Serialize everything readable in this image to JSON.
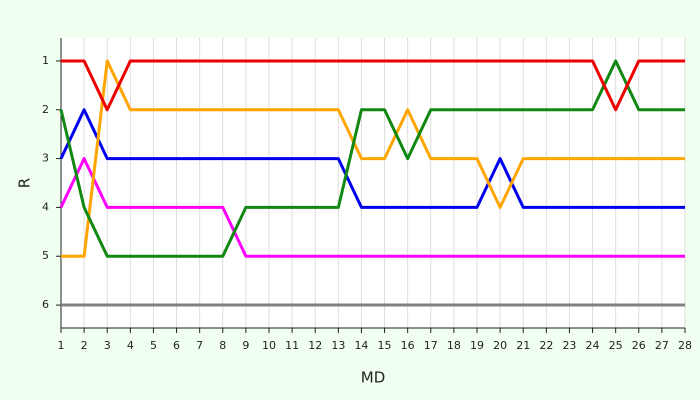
{
  "chart_data": {
    "type": "line",
    "xlabel": "MD",
    "ylabel": "R",
    "x": [
      1,
      2,
      3,
      4,
      5,
      6,
      7,
      8,
      9,
      10,
      11,
      12,
      13,
      14,
      15,
      16,
      17,
      18,
      19,
      20,
      21,
      22,
      23,
      24,
      25,
      26,
      27,
      28
    ],
    "xlim": [
      1,
      28
    ],
    "xticks": [
      1,
      2,
      3,
      4,
      5,
      6,
      7,
      8,
      9,
      10,
      11,
      12,
      13,
      14,
      15,
      16,
      17,
      18,
      19,
      20,
      21,
      22,
      23,
      24,
      25,
      26,
      27,
      28
    ],
    "ylim": [
      6.47,
      0.53
    ],
    "yticks": [
      1,
      2,
      3,
      4,
      5,
      6
    ],
    "grid": true,
    "series": [
      {
        "color": "#808080",
        "values": [
          6,
          6,
          6,
          6,
          6,
          6,
          6,
          6,
          6,
          6,
          6,
          6,
          6,
          6,
          6,
          6,
          6,
          6,
          6,
          6,
          6,
          6,
          6,
          6,
          6,
          6,
          6,
          6
        ]
      },
      {
        "color": "#ff00ff",
        "values": [
          4,
          3,
          4,
          4,
          4,
          4,
          4,
          4,
          5,
          5,
          5,
          5,
          5,
          5,
          5,
          5,
          5,
          5,
          5,
          5,
          5,
          5,
          5,
          5,
          5,
          5,
          5,
          5
        ]
      },
      {
        "color": "#0000ee",
        "values": [
          3,
          2,
          3,
          3,
          3,
          3,
          3,
          3,
          3,
          3,
          3,
          3,
          3,
          4,
          4,
          4,
          4,
          4,
          4,
          3,
          4,
          4,
          4,
          4,
          4,
          4,
          4,
          4
        ]
      },
      {
        "color": "#ffa500",
        "values": [
          5,
          5,
          1,
          2,
          2,
          2,
          2,
          2,
          2,
          2,
          2,
          2,
          2,
          3,
          3,
          2,
          3,
          3,
          3,
          4,
          3,
          3,
          3,
          3,
          3,
          3,
          3,
          3
        ]
      },
      {
        "color": "#118811",
        "values": [
          2,
          4,
          5,
          5,
          5,
          5,
          5,
          5,
          4,
          4,
          4,
          4,
          4,
          2,
          2,
          3,
          2,
          2,
          2,
          2,
          2,
          2,
          2,
          2,
          1,
          2,
          2,
          2
        ]
      },
      {
        "color": "#ee0000",
        "values": [
          1,
          1,
          2,
          1,
          1,
          1,
          1,
          1,
          1,
          1,
          1,
          1,
          1,
          1,
          1,
          1,
          1,
          1,
          1,
          1,
          1,
          1,
          1,
          1,
          2,
          1,
          1,
          1
        ]
      }
    ]
  }
}
